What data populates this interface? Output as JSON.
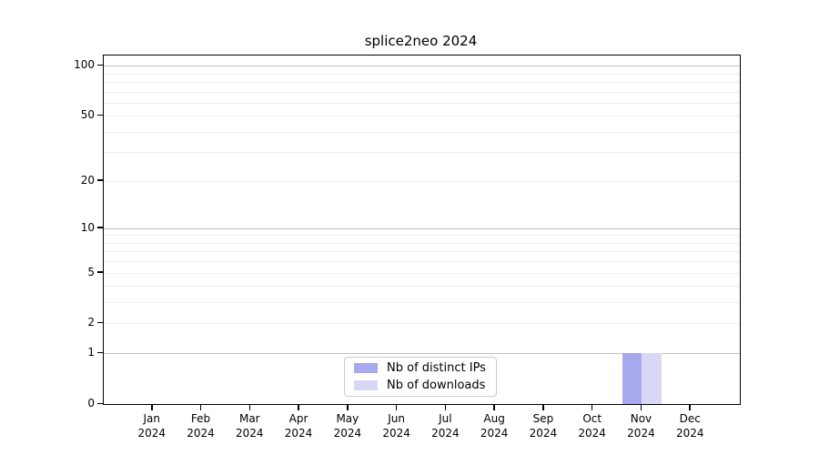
{
  "chart_data": {
    "type": "bar",
    "title": "splice2neo 2024",
    "categories": [
      "Jan",
      "Feb",
      "Mar",
      "Apr",
      "May",
      "Jun",
      "Jul",
      "Aug",
      "Sep",
      "Oct",
      "Nov",
      "Dec"
    ],
    "category_year": "2024",
    "series": [
      {
        "name": "Nb of distinct IPs",
        "color": "#a8a8ee",
        "values": [
          0,
          0,
          0,
          0,
          0,
          0,
          0,
          0,
          0,
          0,
          1,
          0
        ]
      },
      {
        "name": "Nb of downloads",
        "color": "#d8d8f6",
        "values": [
          0,
          0,
          0,
          0,
          0,
          0,
          0,
          0,
          0,
          0,
          1,
          0
        ]
      }
    ],
    "xlabel": "",
    "ylabel": "",
    "y_scale": "log1p",
    "y_ticks": [
      0,
      1,
      2,
      5,
      10,
      20,
      50,
      100
    ],
    "y_major_gridlines": [
      1,
      10,
      100
    ],
    "y_minor_gridlines": [
      2,
      3,
      4,
      5,
      6,
      7,
      8,
      9,
      20,
      30,
      40,
      50,
      60,
      70,
      80,
      90
    ],
    "ylim": [
      0,
      115
    ],
    "grid": true,
    "legend": {
      "position": "lower center",
      "items": [
        "Nb of distinct IPs",
        "Nb of downloads"
      ]
    }
  },
  "colors": {
    "background": "#ffffff",
    "axis": "#000000",
    "major_grid": "#c2c2c2",
    "minor_grid": "#ededed",
    "legend_border": "#cccccc",
    "text": "#000000"
  }
}
